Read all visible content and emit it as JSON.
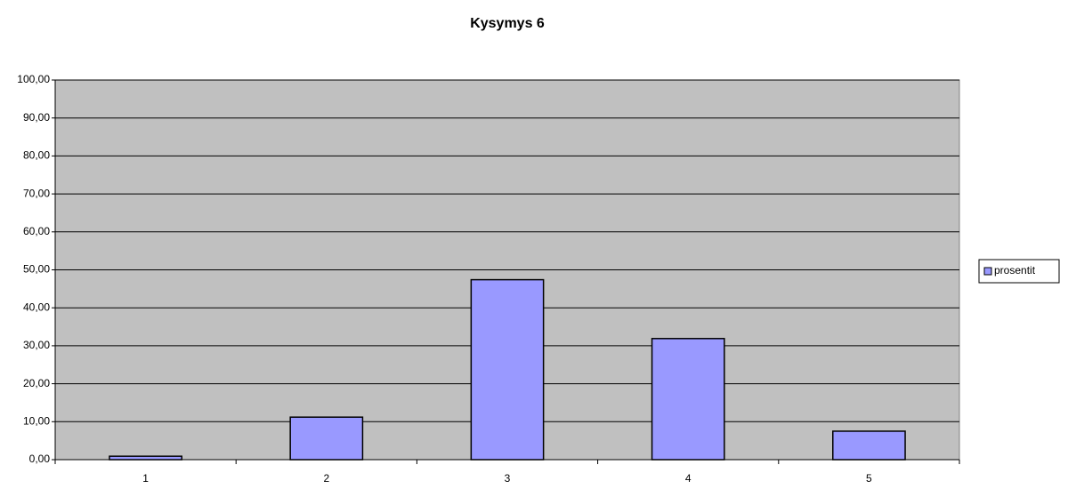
{
  "chart_data": {
    "type": "bar",
    "title": "Kysymys 6",
    "categories": [
      "1",
      "2",
      "3",
      "4",
      "5"
    ],
    "series": [
      {
        "name": "prosentit",
        "color": "#9999ff",
        "values": [
          0.9,
          11.2,
          47.4,
          31.9,
          7.5
        ]
      }
    ],
    "ylim": [
      0,
      100
    ],
    "yticks": [
      {
        "value": 0,
        "label": "0,00"
      },
      {
        "value": 10,
        "label": "10,00"
      },
      {
        "value": 20,
        "label": "20,00"
      },
      {
        "value": 30,
        "label": "30,00"
      },
      {
        "value": 40,
        "label": "40,00"
      },
      {
        "value": 50,
        "label": "50,00"
      },
      {
        "value": 60,
        "label": "60,00"
      },
      {
        "value": 70,
        "label": "70,00"
      },
      {
        "value": 80,
        "label": "80,00"
      },
      {
        "value": 90,
        "label": "90,00"
      },
      {
        "value": 100,
        "label": "100,00"
      }
    ],
    "grid": true,
    "legend": "right",
    "plot_background": "#c0c0c0"
  }
}
